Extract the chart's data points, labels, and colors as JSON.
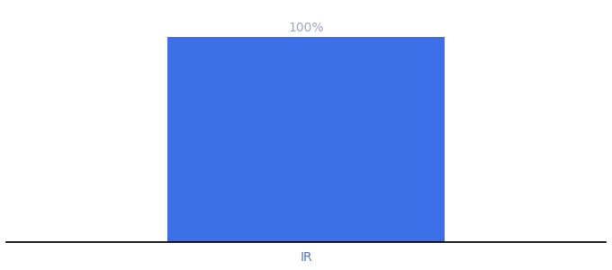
{
  "categories": [
    "IR"
  ],
  "values": [
    100
  ],
  "bar_color": "#3d6fe8",
  "bar_label": "100%",
  "bar_label_color": "#a0a8c0",
  "tick_label_color": "#5577cc",
  "ylim": [
    0,
    115
  ],
  "bar_width": 0.6,
  "xlim": [
    -0.65,
    0.65
  ],
  "figsize": [
    6.8,
    3.0
  ],
  "dpi": 100,
  "background_color": "#ffffff",
  "label_fontsize": 10,
  "tick_fontsize": 10
}
